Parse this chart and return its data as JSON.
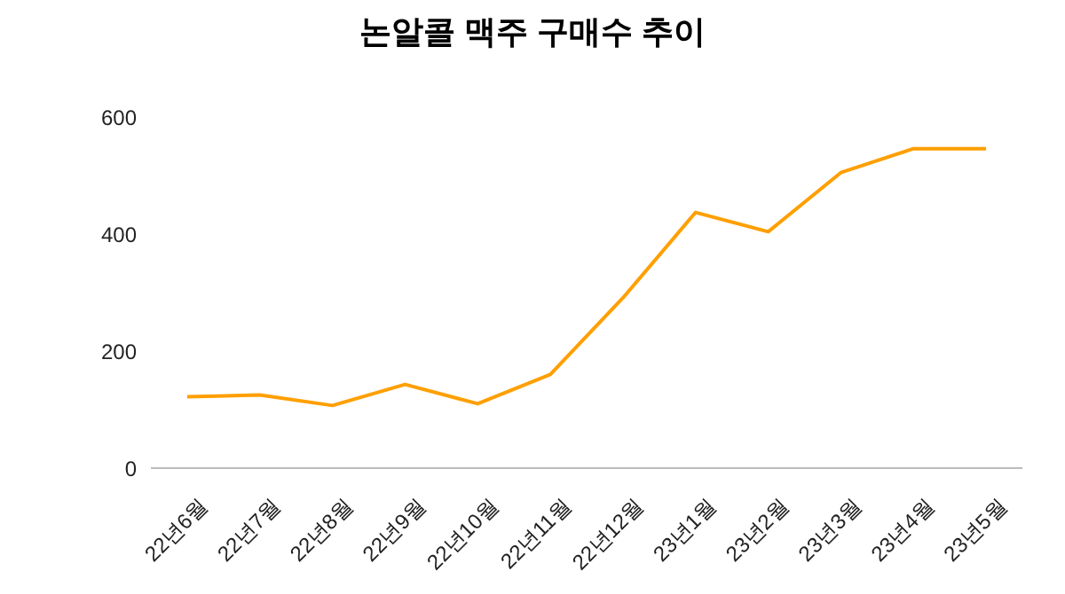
{
  "chart_data": {
    "type": "line",
    "title": "논알콜 맥주 구매수 추이",
    "categories": [
      "22년6월",
      "22년7월",
      "22년8월",
      "22년9월",
      "22년10월",
      "22년11월",
      "22년12월",
      "23년1월",
      "23년2월",
      "23년3월",
      "23년4월",
      "23년5월"
    ],
    "series": [
      {
        "color": "#ff9f00",
        "values": [
          122,
          125,
          107,
          143,
          110,
          160,
          291,
          437,
          404,
          505,
          546,
          546
        ]
      }
    ],
    "ylim": [
      0,
      600
    ],
    "yticks": [
      0,
      200,
      400,
      600
    ],
    "grid": false,
    "legend": false,
    "marker": "none"
  }
}
